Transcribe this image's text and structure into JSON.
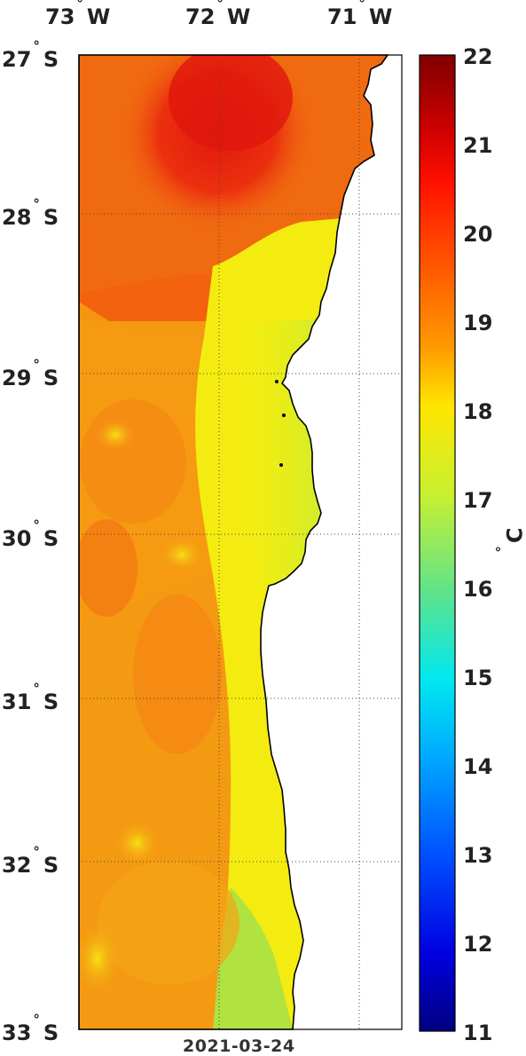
{
  "map": {
    "date": "2021-03-24",
    "variable_unit": "C",
    "lon_labels": [
      {
        "deg": "73",
        "dir": "W"
      },
      {
        "deg": "72",
        "dir": "W"
      },
      {
        "deg": "71",
        "dir": "W"
      }
    ],
    "lat_labels": [
      {
        "deg": "27",
        "dir": "S"
      },
      {
        "deg": "28",
        "dir": "S"
      },
      {
        "deg": "29",
        "dir": "S"
      },
      {
        "deg": "30",
        "dir": "S"
      },
      {
        "deg": "31",
        "dir": "S"
      },
      {
        "deg": "32",
        "dir": "S"
      },
      {
        "deg": "33",
        "dir": "S"
      }
    ],
    "lon_range": [
      -73.0,
      -70.7
    ],
    "lat_range": [
      -33.0,
      -27.0
    ],
    "grid": true,
    "colormap": "jet",
    "colorbar": {
      "min": 11,
      "max": 22,
      "ticks": [
        "22",
        "21",
        "20",
        "19",
        "18",
        "17",
        "16",
        "15",
        "14",
        "13",
        "12",
        "11"
      ]
    },
    "colors": {
      "land": "#ffffff",
      "coastline": "#000000",
      "warm_core": "#e0160d",
      "warm": "#f3630f",
      "mid": "#f49a12",
      "cool": "#f4f010",
      "cold": "#9fe24a"
    }
  }
}
